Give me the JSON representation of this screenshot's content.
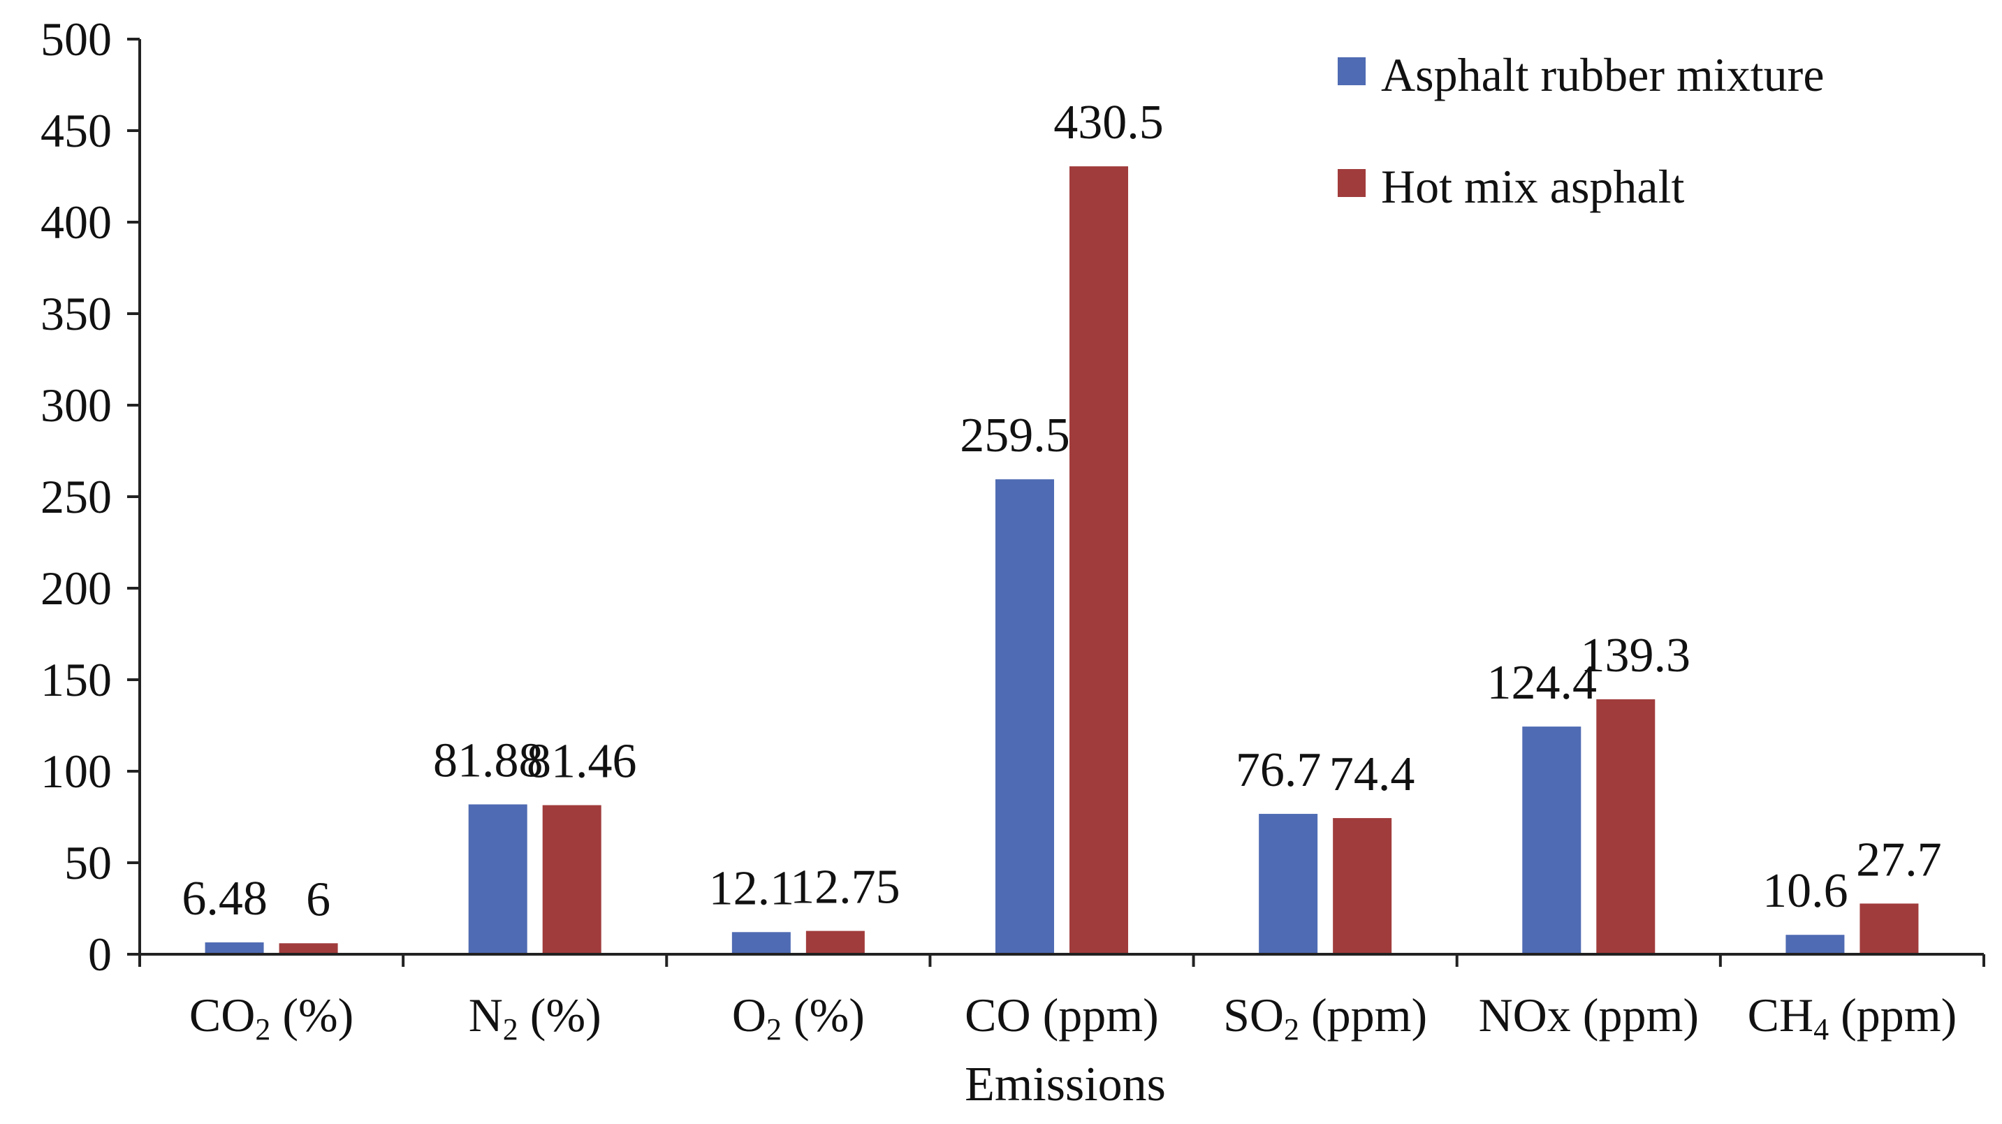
{
  "chart_data": {
    "type": "bar",
    "title": "",
    "xlabel": "Emissions",
    "ylabel": "",
    "ylim": [
      0,
      500
    ],
    "yticks": [
      0,
      50,
      100,
      150,
      200,
      250,
      300,
      350,
      400,
      450,
      500
    ],
    "grid": false,
    "legend_position": "top-right",
    "categories": [
      {
        "base": "CO",
        "sub": "2",
        "rest": " (%)"
      },
      {
        "base": "N",
        "sub": "2",
        "rest": " (%)"
      },
      {
        "base": "O",
        "sub": "2",
        "rest": " (%)"
      },
      {
        "base": "CO (ppm)",
        "sub": "",
        "rest": ""
      },
      {
        "base": "SO",
        "sub": "2",
        "rest": " (ppm)"
      },
      {
        "base": "NOx (ppm)",
        "sub": "",
        "rest": ""
      },
      {
        "base": "CH",
        "sub": "4",
        "rest": " (ppm)"
      }
    ],
    "series": [
      {
        "name": "Asphalt rubber mixture",
        "color": "#4F6BB3",
        "values": [
          6.48,
          81.88,
          12.1,
          259.5,
          76.7,
          124.4,
          10.6
        ],
        "labels": [
          "6.48",
          "81.88",
          "12.1",
          "259.5",
          "76.7",
          "124.4",
          "10.6"
        ]
      },
      {
        "name": "Hot mix asphalt",
        "color": "#A13C3C",
        "values": [
          6,
          81.46,
          12.75,
          430.5,
          74.4,
          139.3,
          27.7
        ],
        "labels": [
          "6",
          "81.46",
          "12.75",
          "430.5",
          "74.4",
          "139.3",
          "27.7"
        ]
      }
    ]
  }
}
